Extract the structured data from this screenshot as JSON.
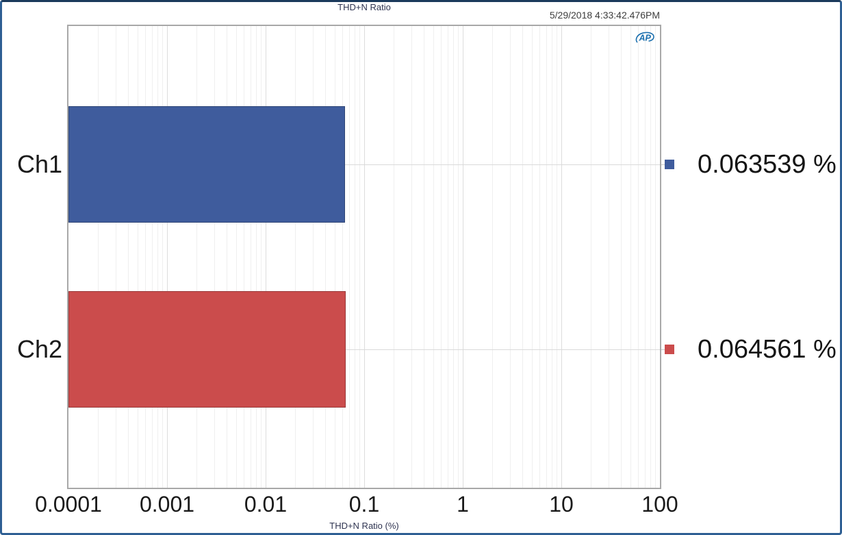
{
  "header": {
    "title": "THD+N Ratio",
    "timestamp": "5/29/2018 4:33:42.476PM",
    "logo_text": "AP"
  },
  "chart_data": {
    "type": "bar",
    "orientation": "horizontal",
    "title": "THD+N Ratio",
    "xlabel": "THD+N Ratio (%)",
    "x_scale": "log",
    "xlim": [
      0.0001,
      100
    ],
    "x_tick_labels": [
      "0.0001",
      "0.001",
      "0.01",
      "0.1",
      "1",
      "10",
      "100"
    ],
    "categories": [
      "Ch1",
      "Ch2"
    ],
    "series": [
      {
        "name": "Ch1",
        "value": 0.063539,
        "display_value": "0.063539 %",
        "color": "#3f5c9d"
      },
      {
        "name": "Ch2",
        "value": 0.064561,
        "display_value": "0.064561 %",
        "color": "#cb4c4c"
      }
    ],
    "grid": true,
    "legend_position": "right",
    "units": "%"
  },
  "colors": {
    "bar_blue": "#3f5c9d",
    "bar_red": "#cb4c4c",
    "plot_border": "#a8a8a8",
    "grid_major": "#dcdcdc",
    "grid_minor": "#efefef",
    "frame_border": "#2e5f93",
    "logo_blue": "#1a6fae"
  }
}
